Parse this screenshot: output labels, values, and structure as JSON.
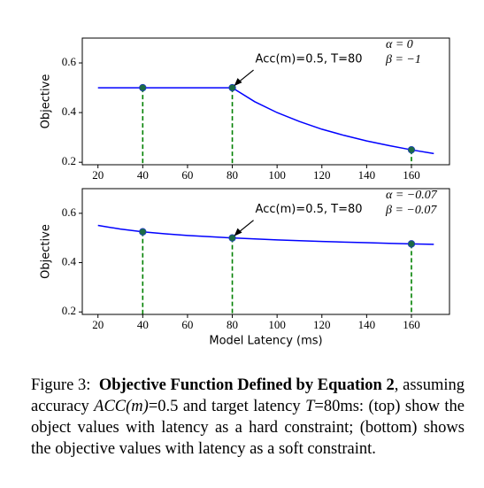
{
  "chart_data": [
    {
      "type": "line",
      "ylabel": "Objective",
      "x": [
        20,
        30,
        40,
        50,
        60,
        70,
        80,
        90,
        100,
        110,
        120,
        130,
        140,
        150,
        160,
        170
      ],
      "series": [
        {
          "color": "#0000ff",
          "values": [
            0.5,
            0.5,
            0.5,
            0.5,
            0.5,
            0.5,
            0.5,
            0.444,
            0.4,
            0.364,
            0.333,
            0.308,
            0.286,
            0.267,
            0.25,
            0.235
          ]
        }
      ],
      "markers": {
        "x": [
          40,
          80,
          160
        ],
        "values": [
          0.5,
          0.5,
          0.25
        ],
        "color": "#1b6b45",
        "drop_line_color": "#008000"
      },
      "xlim": [
        13,
        177
      ],
      "ylim": [
        0.19,
        0.7
      ],
      "xticks": [
        20,
        40,
        60,
        80,
        100,
        120,
        140,
        160
      ],
      "yticks": [
        0.2,
        0.4,
        0.6
      ],
      "annotation": {
        "text": "Acc(m)=0.5, T=80",
        "x": 80,
        "y": 0.5
      },
      "params": [
        "α = 0",
        "β = −1"
      ]
    },
    {
      "type": "line",
      "ylabel": "Objective",
      "xlabel": "Model Latency (ms)",
      "x": [
        20,
        30,
        40,
        50,
        60,
        70,
        80,
        90,
        100,
        110,
        120,
        130,
        140,
        150,
        160,
        170
      ],
      "series": [
        {
          "color": "#0000ff",
          "values": [
            0.551,
            0.536,
            0.525,
            0.517,
            0.51,
            0.505,
            0.5,
            0.496,
            0.492,
            0.489,
            0.486,
            0.483,
            0.481,
            0.478,
            0.476,
            0.474
          ]
        }
      ],
      "markers": {
        "x": [
          40,
          80,
          160
        ],
        "values": [
          0.525,
          0.5,
          0.476
        ],
        "color": "#1b6b45",
        "drop_line_color": "#008000"
      },
      "xlim": [
        13,
        177
      ],
      "ylim": [
        0.19,
        0.7
      ],
      "xticks": [
        20,
        40,
        60,
        80,
        100,
        120,
        140,
        160
      ],
      "yticks": [
        0.2,
        0.4,
        0.6
      ],
      "annotation": {
        "text": "Acc(m)=0.5, T=80",
        "x": 80,
        "y": 0.5
      },
      "params": [
        "α = −0.07",
        "β = −0.07"
      ]
    }
  ],
  "caption": {
    "label": "Figure 3:",
    "title": "Objective Function Defined by Equation 2",
    "text": [
      ", assuming accuracy ",
      "ACC(m)",
      "=0.5 and target latency ",
      "T",
      "=80ms: (top) show the object values with latency as a hard constraint; (bottom) shows the objective values with latency as a soft constraint."
    ]
  }
}
